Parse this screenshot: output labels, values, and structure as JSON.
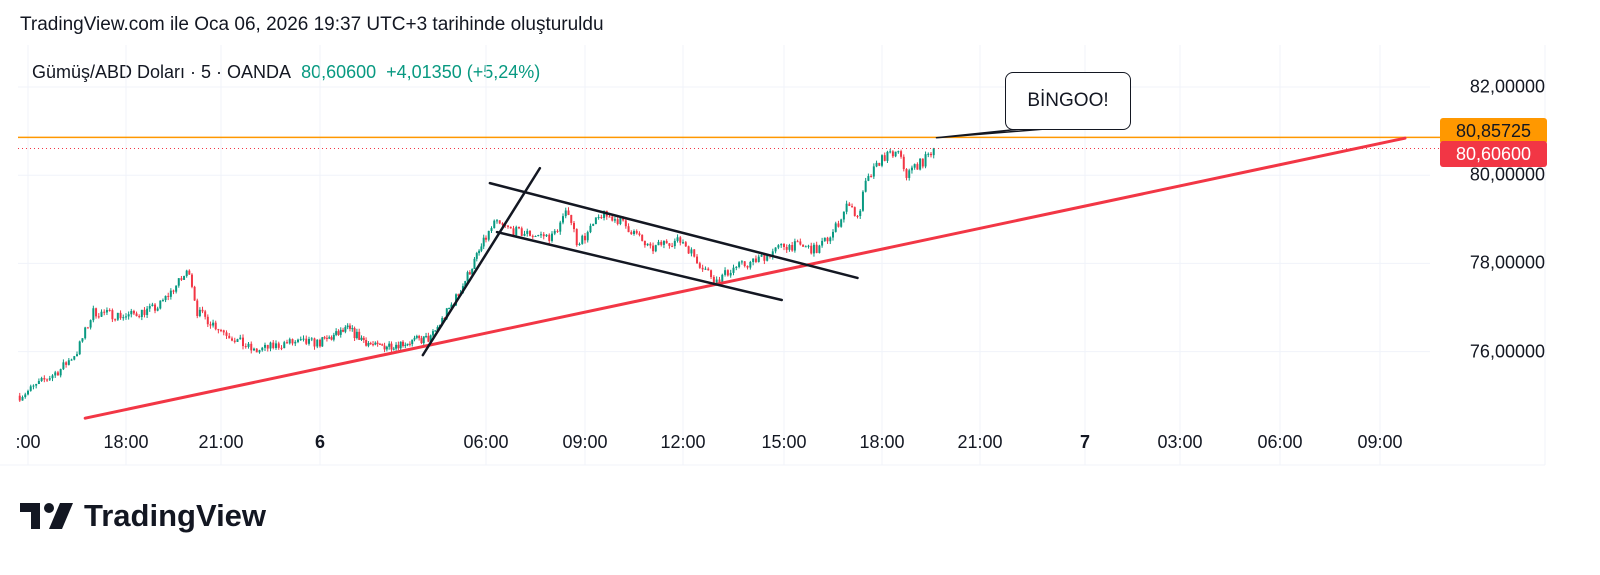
{
  "caption": "TradingView.com ile Oca 06, 2026 19:37 UTC+3 tarihinde oluşturuldu",
  "legend": {
    "symbol": "Gümüş/ABD Doları · 5 · OANDA",
    "last": "80,60600",
    "change": "+4,01350 (+5,24%)"
  },
  "callout_text": "BİNGOO!",
  "logo_text": "TradingView",
  "colors": {
    "up": "#089981",
    "down": "#f23645",
    "trendline": "#f23645",
    "horizontal": "#ff9800",
    "drawing": "#131722"
  },
  "chart_data": {
    "type": "candlestick",
    "interval": "5",
    "ylim": [
      74.4,
      82.9
    ],
    "y_ticks": [
      {
        "v": 82,
        "label": "82,00000"
      },
      {
        "v": 80,
        "label": "80,00000"
      },
      {
        "v": 78,
        "label": "78,00000"
      },
      {
        "v": 76,
        "label": "76,00000"
      }
    ],
    "price_badges": [
      {
        "v": 80.85725,
        "label": "80,85725",
        "bg": "#ff9800",
        "fg": "#131722"
      },
      {
        "v": 80.606,
        "label": "80,60600",
        "bg": "#f23645",
        "fg": "#ffffff"
      }
    ],
    "x_ticks": [
      {
        "t": "01-05 15:00",
        "label": ":00"
      },
      {
        "t": "01-05 18:00",
        "label": "18:00"
      },
      {
        "t": "01-05 21:00",
        "label": "21:00"
      },
      {
        "t": "01-06 00:00",
        "label": "6",
        "bold": true
      },
      {
        "t": "01-06 06:00",
        "label": "06:00"
      },
      {
        "t": "01-06 09:00",
        "label": "09:00"
      },
      {
        "t": "01-06 12:00",
        "label": "12:00"
      },
      {
        "t": "01-06 15:00",
        "label": "15:00"
      },
      {
        "t": "01-06 18:00",
        "label": "18:00"
      },
      {
        "t": "01-06 21:00",
        "label": "21:00"
      },
      {
        "t": "01-07 00:00",
        "label": "7",
        "bold": true
      },
      {
        "t": "01-07 03:00",
        "label": "03:00"
      },
      {
        "t": "01-07 06:00",
        "label": "06:00"
      },
      {
        "t": "01-07 09:00",
        "label": "09:00"
      }
    ],
    "approx_price_path": [
      [
        "01-05 14:45",
        75.0
      ],
      [
        "01-05 15:00",
        75.1
      ],
      [
        "01-05 16:00",
        75.6
      ],
      [
        "01-05 16:30",
        76.0
      ],
      [
        "01-05 17:00",
        76.9
      ],
      [
        "01-05 18:00",
        76.8
      ],
      [
        "01-05 19:00",
        77.0
      ],
      [
        "01-05 20:00",
        77.85
      ],
      [
        "01-05 20:15",
        76.9
      ],
      [
        "01-05 21:00",
        76.5
      ],
      [
        "01-05 22:00",
        76.0
      ],
      [
        "01-05 23:00",
        76.2
      ],
      [
        "01-06 00:00",
        76.2
      ],
      [
        "01-06 01:00",
        76.5
      ],
      [
        "01-06 02:00",
        76.1
      ],
      [
        "01-06 03:00",
        76.2
      ],
      [
        "01-06 04:00",
        76.3
      ],
      [
        "01-06 05:00",
        77.3
      ],
      [
        "01-06 06:15",
        78.9
      ],
      [
        "01-06 07:00",
        78.7
      ],
      [
        "01-06 08:00",
        78.6
      ],
      [
        "01-06 08:30",
        79.2
      ],
      [
        "01-06 08:45",
        78.5
      ],
      [
        "01-06 09:00",
        78.6
      ],
      [
        "01-06 09:30",
        79.1
      ],
      [
        "01-06 10:00",
        79.0
      ],
      [
        "01-06 10:30",
        78.7
      ],
      [
        "01-06 11:00",
        78.3
      ],
      [
        "01-06 11:30",
        78.5
      ],
      [
        "01-06 12:00",
        78.5
      ],
      [
        "01-06 12:30",
        78.0
      ],
      [
        "01-06 13:00",
        77.6
      ],
      [
        "01-06 13:30",
        77.9
      ],
      [
        "01-06 14:00",
        78.0
      ],
      [
        "01-06 15:00",
        78.4
      ],
      [
        "01-06 15:30",
        78.4
      ],
      [
        "01-06 16:00",
        78.3
      ],
      [
        "01-06 16:30",
        78.7
      ],
      [
        "01-06 17:00",
        79.4
      ],
      [
        "01-06 17:15",
        79.0
      ],
      [
        "01-06 17:30",
        79.8
      ],
      [
        "01-06 18:00",
        80.4
      ],
      [
        "01-06 18:30",
        80.5
      ],
      [
        "01-06 18:45",
        80.0
      ],
      [
        "01-06 19:00",
        80.2
      ],
      [
        "01-06 19:15",
        80.3
      ],
      [
        "01-06 19:35",
        80.606
      ]
    ],
    "drawings": {
      "trendline": [
        [
          "01-05 16:45",
          74.49
        ],
        [
          "01-07 09:45",
          80.84
        ]
      ],
      "flagpole": [
        [
          "01-06 03:43",
          75.92
        ],
        [
          "01-06 07:38",
          80.16
        ]
      ],
      "channel_upper": [
        [
          "01-06 06:07",
          79.82
        ],
        [
          "01-06 17:15",
          77.67
        ]
      ],
      "channel_lower": [
        [
          "01-06 06:20",
          78.71
        ],
        [
          "01-06 14:56",
          77.17
        ]
      ],
      "callout_anchor": [
        "01-06 19:40",
        80.85
      ]
    }
  }
}
